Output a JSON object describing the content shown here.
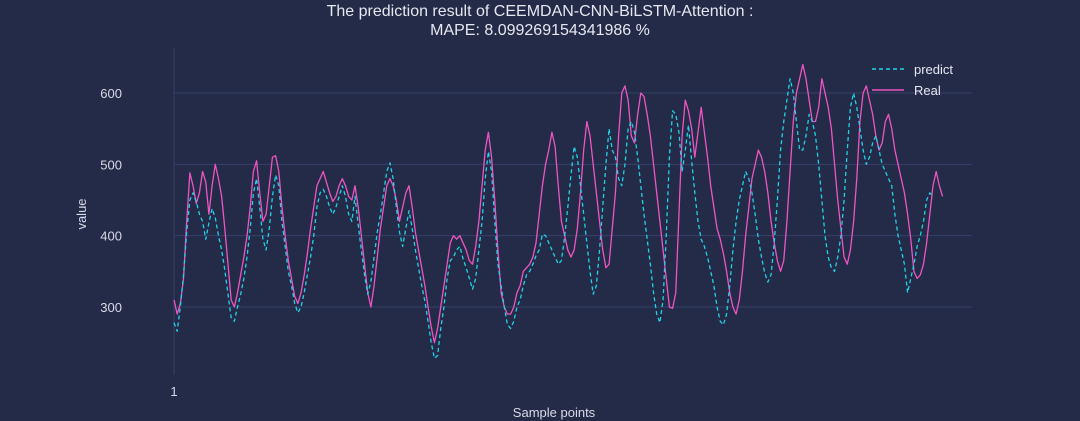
{
  "chart_data": {
    "type": "line",
    "title": "The prediction result of CEEMDAN-CNN-BiLSTM-Attention :",
    "subtitle": "MAPE: 8.099269154341986 %",
    "xlabel": "Sample points",
    "ylabel": "value",
    "x_ticks": [
      "1"
    ],
    "y_ticks": [
      300,
      400,
      500,
      600
    ],
    "ylim": [
      205,
      660
    ],
    "xlim": [
      1,
      240
    ],
    "grid": true,
    "legend_position": "top-right",
    "colors": {
      "background": "#232b48",
      "grid": "#36406a",
      "predict": "#22d3e6",
      "real": "#ef55c0",
      "text": "#e6e8ef"
    },
    "series": [
      {
        "name": "predict",
        "style": "dashed",
        "values": [
          278,
          266,
          300,
          345,
          405,
          450,
          460,
          448,
          430,
          420,
          395,
          418,
          438,
          425,
          400,
          380,
          352,
          318,
          285,
          280,
          300,
          318,
          340,
          370,
          410,
          460,
          480,
          440,
          395,
          380,
          410,
          455,
          485,
          470,
          420,
          385,
          350,
          330,
          305,
          292,
          300,
          320,
          345,
          370,
          400,
          440,
          460,
          465,
          455,
          440,
          430,
          440,
          455,
          470,
          455,
          430,
          420,
          455,
          415,
          380,
          345,
          318,
          335,
          370,
          405,
          430,
          460,
          490,
          502,
          480,
          440,
          405,
          385,
          410,
          435,
          410,
          380,
          355,
          330,
          308,
          280,
          250,
          228,
          232,
          270,
          300,
          340,
          365,
          370,
          380,
          385,
          368,
          355,
          340,
          325,
          340,
          380,
          420,
          480,
          518,
          490,
          420,
          360,
          330,
          300,
          275,
          270,
          280,
          300,
          310,
          330,
          345,
          350,
          360,
          372,
          380,
          402,
          400,
          390,
          380,
          370,
          360,
          365,
          398,
          440,
          485,
          525,
          510,
          470,
          430,
          390,
          350,
          318,
          330,
          380,
          440,
          500,
          550,
          520,
          510,
          480,
          470,
          500,
          550,
          560,
          545,
          510,
          470,
          430,
          395,
          360,
          320,
          290,
          278,
          310,
          400,
          510,
          575,
          570,
          545,
          490,
          520,
          555,
          505,
          460,
          420,
          395,
          385,
          370,
          350,
          330,
          300,
          280,
          275,
          290,
          330,
          380,
          420,
          450,
          470,
          490,
          480,
          460,
          430,
          395,
          370,
          348,
          335,
          345,
          390,
          450,
          520,
          560,
          590,
          620,
          600,
          560,
          520,
          520,
          540,
          570,
          560,
          540,
          500,
          450,
          400,
          370,
          355,
          350,
          370,
          400,
          450,
          520,
          580,
          600,
          580,
          550,
          520,
          500,
          510,
          530,
          540,
          520,
          500,
          490,
          480,
          470,
          430,
          400,
          380,
          360,
          320,
          340,
          360,
          385,
          400,
          420,
          450,
          460,
          455
        ]
      },
      {
        "name": "Real",
        "style": "solid",
        "values": [
          310,
          290,
          305,
          340,
          420,
          488,
          470,
          445,
          460,
          490,
          475,
          430,
          470,
          500,
          480,
          455,
          410,
          360,
          310,
          300,
          320,
          345,
          370,
          400,
          440,
          490,
          505,
          460,
          420,
          430,
          470,
          510,
          512,
          490,
          440,
          400,
          365,
          340,
          315,
          305,
          320,
          345,
          375,
          410,
          440,
          470,
          480,
          490,
          475,
          460,
          448,
          455,
          470,
          480,
          470,
          455,
          450,
          470,
          440,
          400,
          360,
          320,
          300,
          330,
          370,
          410,
          440,
          470,
          480,
          470,
          450,
          420,
          440,
          460,
          470,
          440,
          405,
          380,
          355,
          330,
          300,
          272,
          250,
          270,
          300,
          330,
          360,
          390,
          400,
          395,
          400,
          390,
          380,
          365,
          360,
          385,
          420,
          470,
          520,
          545,
          510,
          450,
          380,
          320,
          300,
          290,
          290,
          300,
          320,
          330,
          350,
          355,
          360,
          370,
          390,
          430,
          470,
          500,
          520,
          545,
          525,
          470,
          420,
          400,
          380,
          370,
          380,
          410,
          460,
          520,
          560,
          540,
          500,
          460,
          420,
          380,
          355,
          360,
          410,
          460,
          540,
          600,
          610,
          590,
          540,
          530,
          570,
          600,
          595,
          570,
          540,
          500,
          460,
          420,
          380,
          340,
          300,
          298,
          320,
          430,
          540,
          590,
          575,
          550,
          510,
          545,
          580,
          545,
          510,
          470,
          440,
          410,
          395,
          375,
          350,
          320,
          300,
          290,
          310,
          350,
          400,
          440,
          480,
          500,
          520,
          510,
          490,
          460,
          420,
          390,
          365,
          350,
          365,
          420,
          490,
          560,
          600,
          620,
          640,
          620,
          590,
          560,
          560,
          580,
          620,
          600,
          580,
          550,
          500,
          450,
          410,
          370,
          360,
          380,
          420,
          480,
          560,
          600,
          610,
          590,
          570,
          540,
          520,
          530,
          560,
          570,
          550,
          520,
          500,
          480,
          460,
          430,
          395,
          350,
          340,
          345,
          360,
          390,
          430,
          470,
          490,
          470,
          455
        ]
      }
    ]
  }
}
